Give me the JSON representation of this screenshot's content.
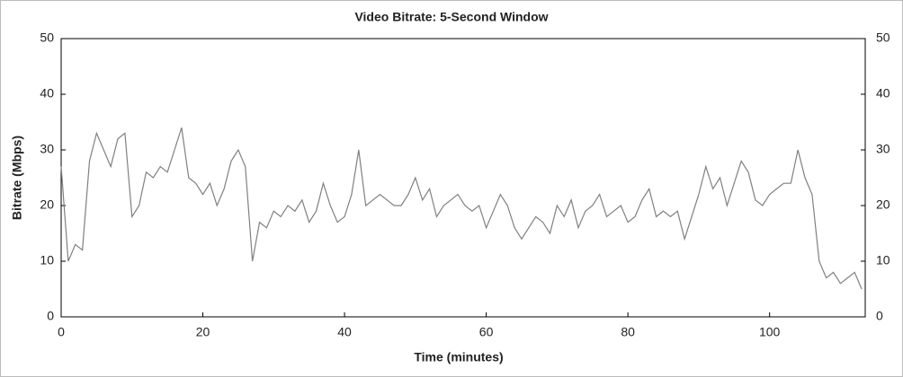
{
  "chart_data": {
    "type": "line",
    "title": "Video Bitrate: 5-Second Window",
    "x_label": "Time (minutes)",
    "y_label": "Bitrate (Mbps)",
    "x": [
      0,
      1,
      2,
      3,
      4,
      5,
      6,
      7,
      8,
      9,
      10,
      11,
      12,
      13,
      14,
      15,
      16,
      17,
      18,
      19,
      20,
      21,
      22,
      23,
      24,
      25,
      26,
      27,
      28,
      29,
      30,
      31,
      32,
      33,
      34,
      35,
      36,
      37,
      38,
      39,
      40,
      41,
      42,
      43,
      44,
      45,
      46,
      47,
      48,
      49,
      50,
      51,
      52,
      53,
      54,
      55,
      56,
      57,
      58,
      59,
      60,
      61,
      62,
      63,
      64,
      65,
      66,
      67,
      68,
      69,
      70,
      71,
      72,
      73,
      74,
      75,
      76,
      77,
      78,
      79,
      80,
      81,
      82,
      83,
      84,
      85,
      86,
      87,
      88,
      89,
      90,
      91,
      92,
      93,
      94,
      95,
      96,
      97,
      98,
      99,
      100,
      101,
      102,
      103,
      104,
      105,
      106,
      107,
      108,
      109,
      110,
      111,
      112,
      113
    ],
    "series": [
      {
        "name": "Bitrate",
        "color": "#808080",
        "values": [
          27,
          10,
          13,
          12,
          28,
          33,
          30,
          27,
          32,
          33,
          18,
          20,
          26,
          25,
          27,
          26,
          30,
          34,
          25,
          24,
          22,
          24,
          20,
          23,
          28,
          30,
          27,
          10,
          17,
          16,
          19,
          18,
          20,
          19,
          21,
          17,
          19,
          24,
          20,
          17,
          18,
          22,
          30,
          20,
          21,
          22,
          21,
          20,
          20,
          22,
          25,
          21,
          23,
          18,
          20,
          21,
          22,
          20,
          19,
          20,
          16,
          19,
          22,
          20,
          16,
          14,
          16,
          18,
          17,
          15,
          20,
          18,
          21,
          16,
          19,
          20,
          22,
          18,
          19,
          20,
          17,
          18,
          21,
          23,
          18,
          19,
          18,
          19,
          14,
          18,
          22,
          27,
          23,
          25,
          20,
          24,
          28,
          26,
          21,
          20,
          22,
          23,
          24,
          24,
          30,
          25,
          22,
          10,
          7,
          8,
          6,
          7,
          8,
          5
        ]
      }
    ],
    "xlim": [
      0,
      113.5
    ],
    "xticks": [
      0,
      20,
      40,
      60,
      80,
      100
    ],
    "ylim": [
      0,
      50
    ],
    "yticks": [
      0,
      10,
      20,
      30,
      40,
      50
    ],
    "y2lim": [
      0,
      50
    ],
    "y2ticks": [
      0,
      10,
      20,
      30,
      40,
      50
    ]
  }
}
